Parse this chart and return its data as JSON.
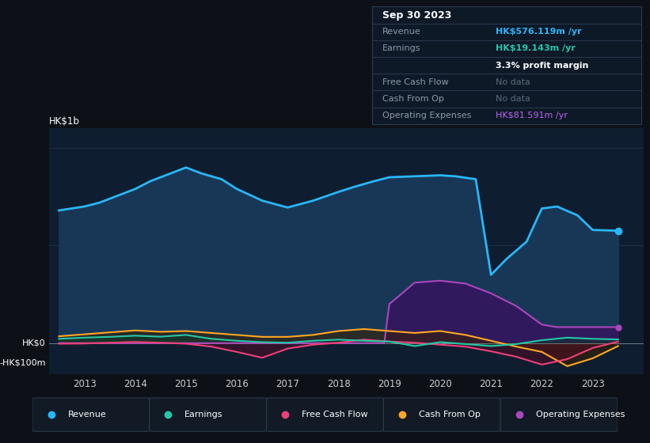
{
  "bg_color": "#0d1117",
  "plot_bg_color": "#0e1e30",
  "grid_color": "#1e3048",
  "title_box": {
    "date": "Sep 30 2023",
    "revenue_label": "Revenue",
    "revenue_value": "HK$576.119m /yr",
    "earnings_label": "Earnings",
    "earnings_value": "HK$19.143m /yr",
    "profit_margin": "3.3% profit margin",
    "fcf_label": "Free Cash Flow",
    "fcf_value": "No data",
    "cashfromop_label": "Cash From Op",
    "cashfromop_value": "No data",
    "opex_label": "Operating Expenses",
    "opex_value": "HK$81.591m /yr",
    "revenue_color": "#29b6f6",
    "earnings_color": "#26c6a8",
    "opex_color": "#bb66ee",
    "nodata_color": "#5a6a7a"
  },
  "y_label_top": "HK$1b",
  "y_label_zero": "HK$0",
  "y_label_neg": "-HK$100m",
  "x_ticks": [
    2013,
    2014,
    2015,
    2016,
    2017,
    2018,
    2019,
    2020,
    2021,
    2022,
    2023
  ],
  "ylim": [
    -160,
    1100
  ],
  "legend": [
    {
      "label": "Revenue",
      "color": "#29b6f6"
    },
    {
      "label": "Earnings",
      "color": "#26c6a8"
    },
    {
      "label": "Free Cash Flow",
      "color": "#ec407a"
    },
    {
      "label": "Cash From Op",
      "color": "#ffa726"
    },
    {
      "label": "Operating Expenses",
      "color": "#ab47bc"
    }
  ],
  "revenue_x": [
    2012.5,
    2013.0,
    2013.3,
    2013.7,
    2014.0,
    2014.3,
    2014.7,
    2015.0,
    2015.3,
    2015.7,
    2016.0,
    2016.5,
    2017.0,
    2017.5,
    2018.0,
    2018.3,
    2018.7,
    2019.0,
    2019.5,
    2020.0,
    2020.3,
    2020.7,
    2021.0,
    2021.3,
    2021.7,
    2022.0,
    2022.3,
    2022.7,
    2023.0,
    2023.5
  ],
  "revenue_y": [
    680,
    700,
    720,
    760,
    790,
    830,
    870,
    900,
    870,
    840,
    790,
    730,
    695,
    730,
    775,
    800,
    830,
    850,
    855,
    860,
    855,
    840,
    350,
    430,
    520,
    690,
    700,
    655,
    580,
    576
  ],
  "earnings_x": [
    2012.5,
    2013.0,
    2013.5,
    2014.0,
    2014.5,
    2015.0,
    2015.5,
    2016.0,
    2016.5,
    2017.0,
    2017.5,
    2018.0,
    2018.5,
    2019.0,
    2019.5,
    2020.0,
    2020.5,
    2021.0,
    2021.5,
    2022.0,
    2022.5,
    2023.0,
    2023.5
  ],
  "earnings_y": [
    22,
    28,
    32,
    38,
    33,
    42,
    22,
    12,
    5,
    2,
    12,
    18,
    12,
    8,
    -15,
    5,
    -5,
    -15,
    -5,
    15,
    28,
    22,
    19
  ],
  "fcf_x": [
    2012.5,
    2013.0,
    2013.5,
    2014.0,
    2014.5,
    2015.0,
    2015.5,
    2016.0,
    2016.5,
    2017.0,
    2017.5,
    2018.0,
    2018.5,
    2019.0,
    2019.5,
    2020.0,
    2020.5,
    2021.0,
    2021.5,
    2022.0,
    2022.5,
    2023.0,
    2023.5
  ],
  "fcf_y": [
    -3,
    -2,
    2,
    6,
    2,
    -3,
    -18,
    -45,
    -75,
    -28,
    -8,
    2,
    18,
    8,
    2,
    -8,
    -18,
    -42,
    -70,
    -110,
    -82,
    -25,
    8
  ],
  "cashop_x": [
    2012.5,
    2013.0,
    2013.5,
    2014.0,
    2014.5,
    2015.0,
    2015.5,
    2016.0,
    2016.5,
    2017.0,
    2017.5,
    2018.0,
    2018.5,
    2019.0,
    2019.5,
    2020.0,
    2020.5,
    2021.0,
    2021.5,
    2022.0,
    2022.5,
    2023.0,
    2023.5
  ],
  "cashop_y": [
    35,
    45,
    55,
    65,
    58,
    62,
    52,
    42,
    32,
    32,
    42,
    62,
    72,
    62,
    52,
    62,
    42,
    12,
    -18,
    -45,
    -118,
    -78,
    -15
  ],
  "opex_x": [
    2012.5,
    2013.0,
    2013.5,
    2014.0,
    2014.5,
    2015.0,
    2015.5,
    2016.0,
    2016.5,
    2017.0,
    2017.5,
    2018.0,
    2018.5,
    2018.9,
    2019.0,
    2019.5,
    2020.0,
    2020.5,
    2021.0,
    2021.5,
    2022.0,
    2022.3,
    2022.7,
    2023.0,
    2023.5
  ],
  "opex_y": [
    0,
    0,
    0,
    0,
    0,
    0,
    0,
    0,
    0,
    0,
    0,
    0,
    0,
    0,
    200,
    310,
    320,
    305,
    255,
    190,
    95,
    82,
    82,
    82,
    82
  ]
}
